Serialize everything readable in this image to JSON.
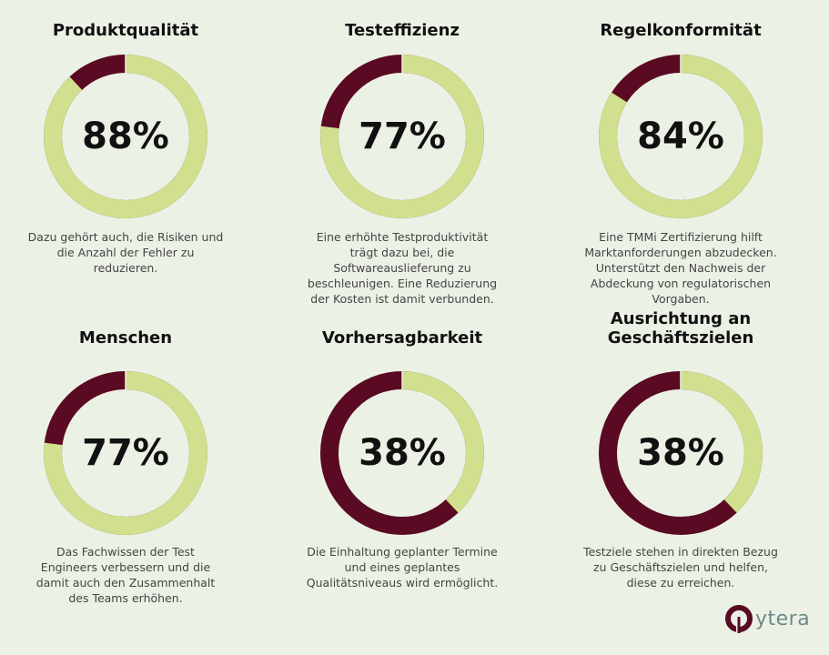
{
  "colors": {
    "background": "#ecf1e6",
    "value": "#d0e08e",
    "remainder": "#5a0a22"
  },
  "chart_data": [
    {
      "type": "pie",
      "title": "Produktqualität",
      "value": 88,
      "label": "88%",
      "description": "Dazu gehört auch, die Risiken und die Anzahl der Fehler zu reduzieren."
    },
    {
      "type": "pie",
      "title": "Testeffizienz",
      "value": 77,
      "label": "77%",
      "description": "Eine erhöhte Testproduktivität trägt dazu bei, die Softwareauslieferung zu beschleunigen. Eine Reduzierung der Kosten ist damit verbunden."
    },
    {
      "type": "pie",
      "title": "Regelkonformität",
      "value": 84,
      "label": "84%",
      "description": "Eine TMMi Zertifizierung hilft Marktanforderungen abzudecken. Unterstützt den Nachweis der Abdeckung von regulatorischen Vorgaben."
    },
    {
      "type": "pie",
      "title": "Menschen",
      "value": 77,
      "label": "77%",
      "description": "Das Fachwissen der Test Engineers verbessern und die damit auch den Zusammenhalt des Teams erhöhen."
    },
    {
      "type": "pie",
      "title": "Vorhersagbarkeit",
      "value": 38,
      "label": "38%",
      "description": "Die Einhaltung geplanter Termine und eines geplantes Qualitätsniveaus wird ermöglicht."
    },
    {
      "type": "pie",
      "title": "Ausrichtung an Geschäftszielen",
      "value": 38,
      "label": "38%",
      "description": "Testziele stehen in direkten Bezug zu Geschäftszielen und helfen, diese zu erreichen."
    }
  ],
  "logo": {
    "text": "ytera",
    "icon": "q-ring-logo-icon"
  }
}
